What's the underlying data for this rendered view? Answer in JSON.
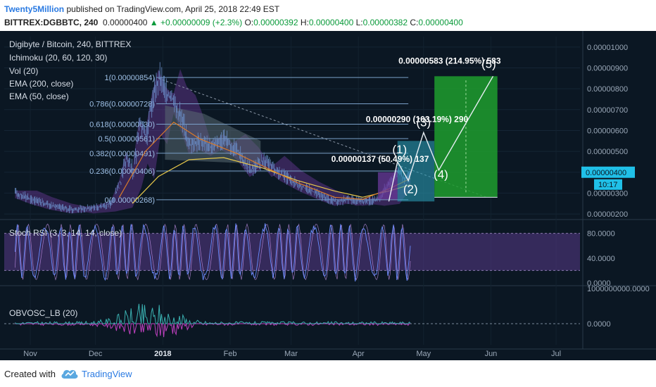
{
  "header": {
    "username": "Twenty5Million",
    "published_text": "published on TradingView.com, April 25, 2018 22:49 EST",
    "symbol": "BITTREX:DGBBTC, 240",
    "last": "0.00000400",
    "change": "▲ +0.00000009 (+2.3%)",
    "o_label": "O:",
    "o_value": "0.00000392",
    "h_label": "H:",
    "h_value": "0.00000400",
    "l_label": "L:",
    "l_value": "0.00000382",
    "c_label": "C:",
    "c_value": "0.00000400"
  },
  "indicators": [
    "Digibyte / Bitcoin, 240, BITTREX",
    "Ichimoku (20, 60, 120, 30)",
    "Vol (20)",
    "EMA (200, close)",
    "EMA (50, close)"
  ],
  "stoch_label": "Stoch RSI (3, 3, 14, 14, close)",
  "obv_label": "OBVOSC_LB (20)",
  "footer": {
    "created_with": "Created with",
    "brand": "TradingView"
  },
  "colors": {
    "background": "#0b1723",
    "candles": "#6a8ec8",
    "ema200": "#e8c84a",
    "ema50": "#d97a2a",
    "fib": "#7aa0c8",
    "green_box": "#1e9e2e",
    "blue_box": "#2a9ab0",
    "purple_box": "#6a3a9a",
    "stoch_k": "#6a8cff",
    "stoch_band": "#5a3a8a",
    "obv_teal": "#3ab0b0",
    "obv_magenta": "#c040c0"
  },
  "chart_data": [
    {
      "type": "line",
      "name": "Price",
      "x_ticks": [
        "Nov",
        "Dec",
        "2018",
        "Feb",
        "Mar",
        "Apr",
        "May",
        "Jun",
        "Jul"
      ],
      "y_ticks": [
        "0.00001000",
        "0.00000900",
        "0.00000800",
        "0.00000700",
        "0.00000600",
        "0.00000500",
        "0.00000400",
        "0.00000300",
        "0.00000200"
      ],
      "ylim": [
        1.8e-06,
        1.05e-05
      ],
      "price_path": [
        [
          "2017-10-25",
          3e-06
        ],
        [
          "2017-11-01",
          2.7e-06
        ],
        [
          "2017-11-10",
          2.4e-06
        ],
        [
          "2017-11-20",
          2.2e-06
        ],
        [
          "2017-11-30",
          2.3e-06
        ],
        [
          "2017-12-08",
          2.5e-06
        ],
        [
          "2017-12-12",
          3.5e-06
        ],
        [
          "2017-12-15",
          4.8e-06
        ],
        [
          "2017-12-18",
          4e-06
        ],
        [
          "2017-12-21",
          6.3e-06
        ],
        [
          "2017-12-24",
          5.8e-06
        ],
        [
          "2017-12-27",
          7.5e-06
        ],
        [
          "2017-12-30",
          8.6e-06
        ],
        [
          "2018-01-02",
          7.8e-06
        ],
        [
          "2018-01-06",
          7.4e-06
        ],
        [
          "2018-01-09",
          6.6e-06
        ],
        [
          "2018-01-13",
          5.3e-06
        ],
        [
          "2018-01-18",
          5.5e-06
        ],
        [
          "2018-01-23",
          5.2e-06
        ],
        [
          "2018-01-29",
          5.6e-06
        ],
        [
          "2018-02-04",
          5e-06
        ],
        [
          "2018-02-10",
          4.1e-06
        ],
        [
          "2018-02-16",
          4.6e-06
        ],
        [
          "2018-02-24",
          3.9e-06
        ],
        [
          "2018-03-04",
          3.4e-06
        ],
        [
          "2018-03-14",
          2.9e-06
        ],
        [
          "2018-03-21",
          2.6e-06
        ],
        [
          "2018-03-27",
          2.7e-06
        ],
        [
          "2018-04-03",
          2.6e-06
        ],
        [
          "2018-04-10",
          2.7e-06
        ],
        [
          "2018-04-15",
          3.5e-06
        ],
        [
          "2018-04-19",
          4.1e-06
        ],
        [
          "2018-04-22",
          3.6e-06
        ],
        [
          "2018-04-25",
          4e-06
        ]
      ],
      "ema200_path": [
        [
          "2017-12-18",
          2.5e-06
        ],
        [
          "2017-12-30",
          3.8e-06
        ],
        [
          "2018-01-13",
          4.6e-06
        ],
        [
          "2018-01-29",
          4.7e-06
        ],
        [
          "2018-02-16",
          4.2e-06
        ],
        [
          "2018-03-04",
          3.6e-06
        ],
        [
          "2018-03-21",
          3.1e-06
        ],
        [
          "2018-04-03",
          2.8e-06
        ],
        [
          "2018-04-15",
          3.1e-06
        ],
        [
          "2018-04-25",
          3.4e-06
        ]
      ],
      "ema50_path": [
        [
          "2017-12-12",
          2.8e-06
        ],
        [
          "2017-12-24",
          5e-06
        ],
        [
          "2018-01-06",
          6.4e-06
        ],
        [
          "2018-01-18",
          5.6e-06
        ],
        [
          "2018-02-04",
          4.9e-06
        ],
        [
          "2018-02-16",
          4.3e-06
        ],
        [
          "2018-03-04",
          3.5e-06
        ],
        [
          "2018-03-21",
          2.8e-06
        ],
        [
          "2018-04-03",
          2.7e-06
        ],
        [
          "2018-04-15",
          3.2e-06
        ],
        [
          "2018-04-25",
          3.7e-06
        ]
      ],
      "fibonacci": [
        {
          "label": "1(0.00000854)",
          "value": 8.54e-06
        },
        {
          "label": "0.786(0.00000728)",
          "value": 7.28e-06
        },
        {
          "label": "0.618(0.00000630)",
          "value": 6.3e-06
        },
        {
          "label": "0.5(0.00000561)",
          "value": 5.61e-06
        },
        {
          "label": "0.382(0.00000491)",
          "value": 4.91e-06
        },
        {
          "label": "0.236(0.00000406)",
          "value": 4.06e-06
        },
        {
          "label": "0(0.00000268)",
          "value": 2.68e-06
        }
      ],
      "projection_labels": [
        {
          "text": "0.00000583 (214.95%) 583"
        },
        {
          "text": "0.00000290 (103.19%) 290"
        },
        {
          "text": "0.00000137 (50.49%) 137"
        }
      ],
      "wave_labels": [
        "(1)",
        "(2)",
        "(3)",
        "(4)",
        "(5)"
      ],
      "price_tag": "0.00000400",
      "countdown": "10:17"
    },
    {
      "type": "line",
      "name": "Stoch RSI",
      "y_ticks": [
        "80.0000",
        "40.0000",
        "0.0000"
      ],
      "ylim": [
        0,
        100
      ],
      "band": [
        20,
        80
      ]
    },
    {
      "type": "line",
      "name": "OBVOSC_LB",
      "y_ticks": [
        "1000000000.0000",
        "0.0000"
      ]
    }
  ]
}
